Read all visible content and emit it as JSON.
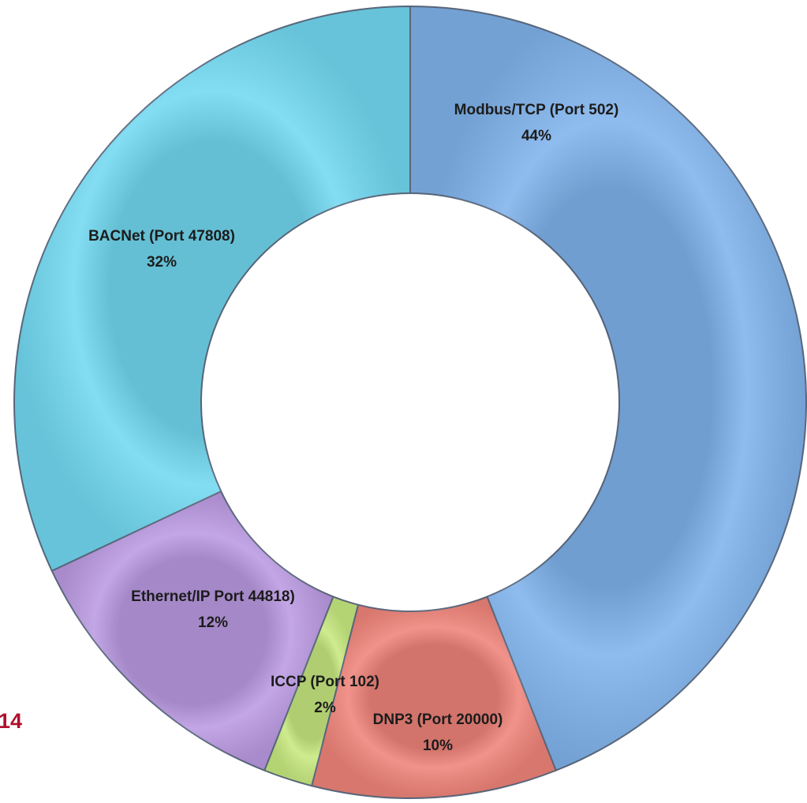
{
  "chart_data": {
    "type": "donut",
    "labels": [
      "Modbus/TCP (Port 502)",
      "DNP3 (Port 20000)",
      "ICCP (Port 102)",
      "Ethernet/IP Port 44818)",
      "BACNet (Port 47808)"
    ],
    "values": [
      44,
      10,
      2,
      12,
      32
    ],
    "value_labels": [
      "44%",
      "10%",
      "2%",
      "12%",
      "32%"
    ],
    "colors": [
      "#80b3ec",
      "#ef847a",
      "#c8ea80",
      "#bb9ae2",
      "#72d9f1"
    ],
    "annotation": "14"
  }
}
